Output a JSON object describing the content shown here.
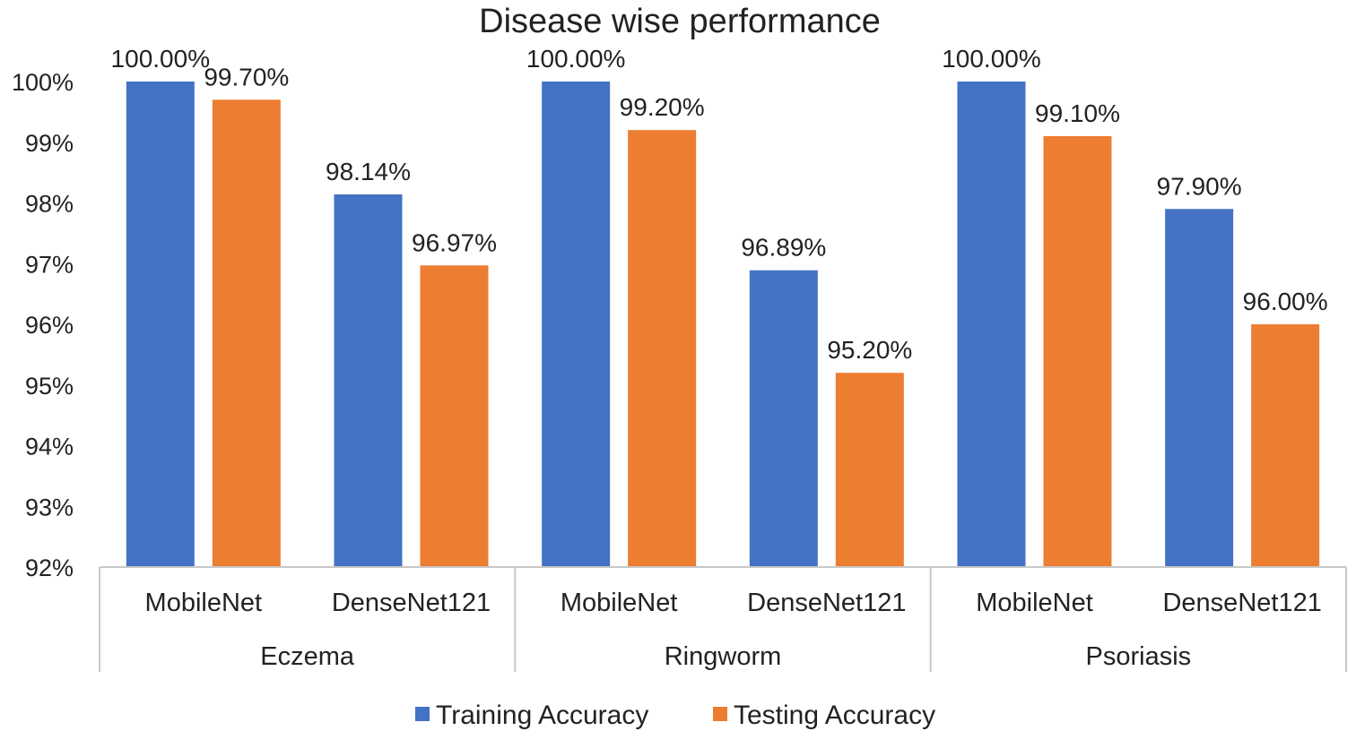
{
  "chart_data": {
    "type": "bar",
    "title": "Disease wise performance",
    "groups": [
      "Eczema",
      "Ringworm",
      "Psoriasis"
    ],
    "categories": [
      "MobileNet",
      "DenseNet121",
      "MobileNet",
      "DenseNet121",
      "MobileNet",
      "DenseNet121"
    ],
    "category_groups": [
      0,
      0,
      1,
      1,
      2,
      2
    ],
    "series": [
      {
        "name": "Training Accuracy",
        "color": "#4472C4",
        "values": [
          100.0,
          98.14,
          100.0,
          96.89,
          100.0,
          97.9
        ],
        "labels": [
          "100.00%",
          "98.14%",
          "100.00%",
          "96.89%",
          "100.00%",
          "97.90%"
        ]
      },
      {
        "name": "Testing Accuracy",
        "color": "#ED7D31",
        "values": [
          99.7,
          96.97,
          99.2,
          95.2,
          99.1,
          96.0
        ],
        "labels": [
          "99.70%",
          "96.97%",
          "99.20%",
          "95.20%",
          "99.10%",
          "96.00%"
        ]
      }
    ],
    "ylim": [
      92,
      100
    ],
    "yticks": [
      92,
      93,
      94,
      95,
      96,
      97,
      98,
      99,
      100
    ],
    "ytick_labels": [
      "92%",
      "93%",
      "94%",
      "95%",
      "96%",
      "97%",
      "98%",
      "99%",
      "100%"
    ],
    "xlabel": "",
    "ylabel": "",
    "grid": false,
    "legend_position": "bottom"
  }
}
